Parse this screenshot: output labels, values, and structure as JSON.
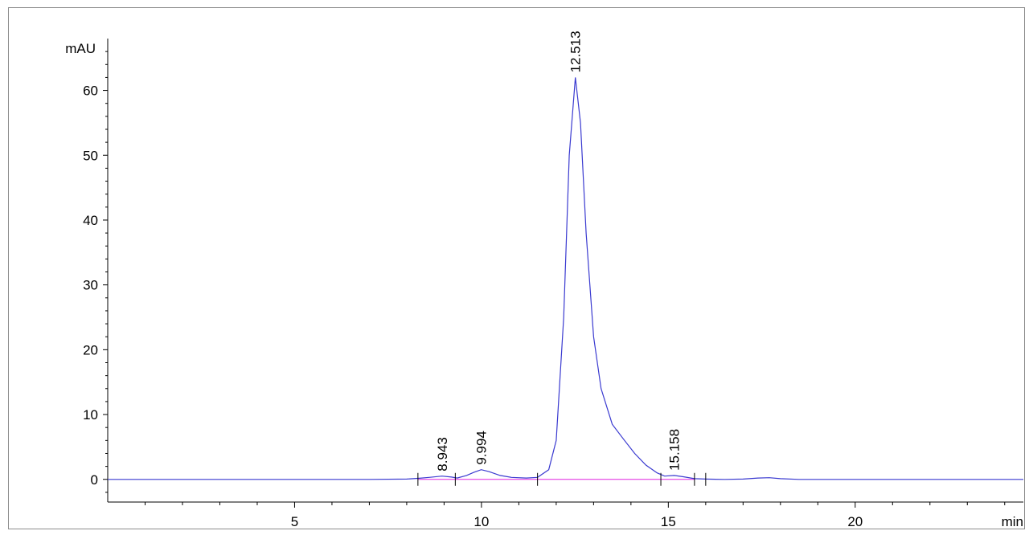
{
  "chart_data": {
    "type": "line",
    "title": "",
    "xlabel": "min",
    "ylabel": "mAU",
    "xlim": [
      0,
      24.5
    ],
    "ylim": [
      -3.5,
      68
    ],
    "x_ticks": [
      5,
      10,
      15,
      20
    ],
    "y_ticks": [
      0,
      10,
      20,
      30,
      40,
      50,
      60
    ],
    "grid": false,
    "colors": {
      "signal": "#3a3ad0",
      "baseline": "#e020e0",
      "axis": "#000000"
    },
    "series": [
      {
        "x": [
          0,
          1,
          2,
          3,
          4,
          5,
          6,
          7,
          8,
          8.3,
          8.6,
          8.943,
          9.2,
          9.35,
          9.6,
          9.8,
          9.994,
          10.2,
          10.5,
          10.8,
          11.2,
          11.5,
          11.8,
          12.0,
          12.2,
          12.35,
          12.513,
          12.65,
          12.8,
          13.0,
          13.2,
          13.5,
          13.8,
          14.1,
          14.4,
          14.7,
          14.9,
          15.158,
          15.4,
          15.7,
          16.0,
          16.5,
          17.0,
          17.4,
          17.7,
          18.0,
          18.5,
          19,
          20,
          21,
          22,
          23,
          24,
          24.5
        ],
        "y": [
          0,
          0,
          0,
          0,
          0,
          0,
          0,
          0,
          0.05,
          0.15,
          0.3,
          0.5,
          0.35,
          0.2,
          0.6,
          1.1,
          1.5,
          1.2,
          0.6,
          0.3,
          0.2,
          0.3,
          1.5,
          6,
          25,
          50,
          62,
          55,
          38,
          22,
          14,
          8.5,
          6.2,
          4,
          2.2,
          1.0,
          0.5,
          0.6,
          0.4,
          0.1,
          0.05,
          0,
          0.05,
          0.2,
          0.25,
          0.1,
          0,
          0,
          0,
          0,
          0,
          0,
          0,
          0
        ]
      }
    ],
    "baseline_segments": [
      [
        8.3,
        15.7
      ]
    ],
    "peak_markers": [
      8.3,
      9.3,
      11.5,
      14.8,
      15.7,
      16.0
    ],
    "peak_labels": [
      {
        "x": 8.943,
        "y": 0.5,
        "text": "8.943"
      },
      {
        "x": 9.994,
        "y": 1.5,
        "text": "9.994"
      },
      {
        "x": 12.513,
        "y": 62,
        "text": "12.513"
      },
      {
        "x": 15.158,
        "y": 0.6,
        "text": "15.158"
      }
    ]
  }
}
